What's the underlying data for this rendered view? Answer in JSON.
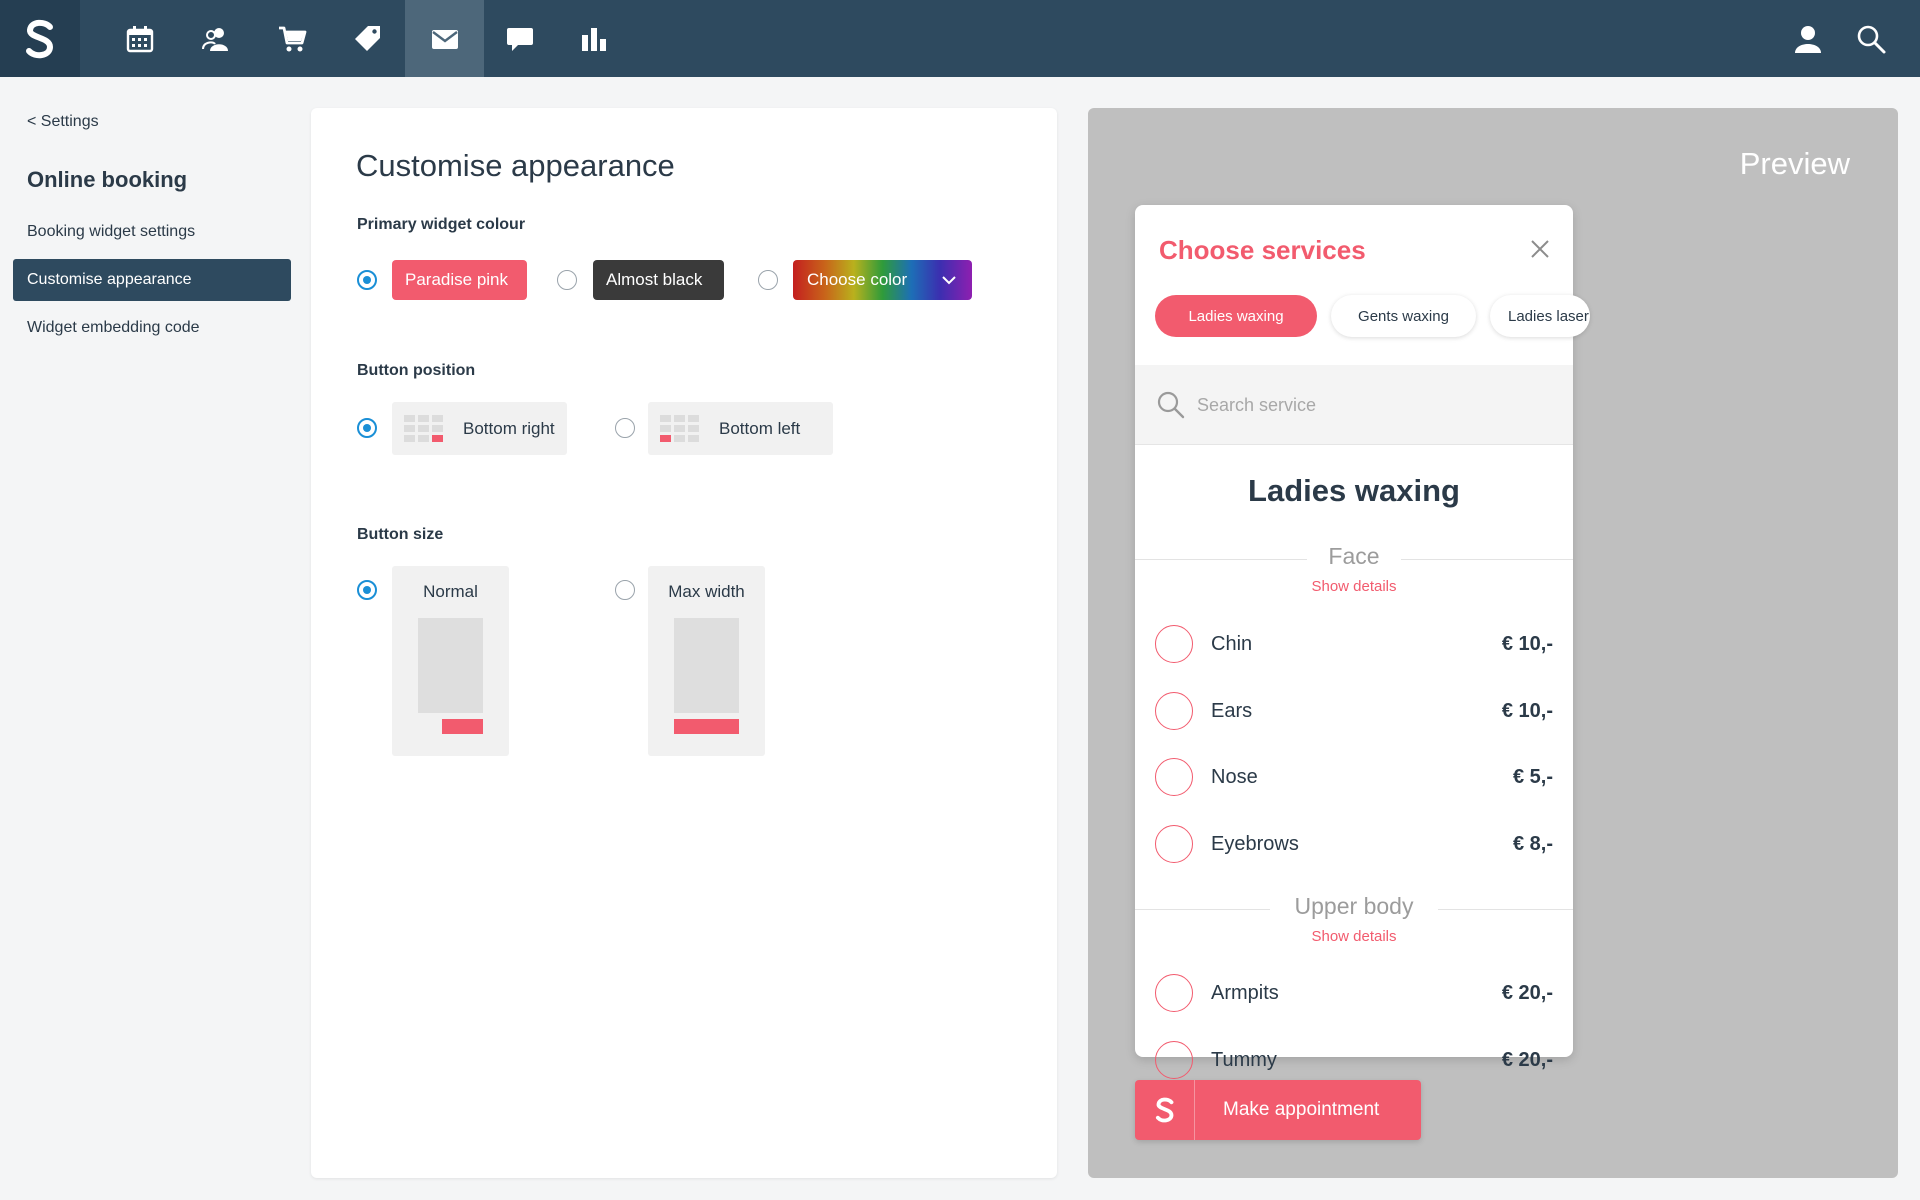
{
  "nav": {
    "brand_icon": "shore-logo-icon",
    "items": [
      {
        "icon": "calendar-icon"
      },
      {
        "icon": "customers-icon"
      },
      {
        "icon": "cart-icon"
      },
      {
        "icon": "tag-icon"
      },
      {
        "icon": "envelope-icon",
        "active": true
      },
      {
        "icon": "chat-icon"
      },
      {
        "icon": "bar-chart-icon"
      }
    ],
    "right_icons": [
      "user-icon",
      "search-icon"
    ],
    "bg_color": "#2e4a5f"
  },
  "sidebar": {
    "back_label": "<  Settings",
    "title": "Online booking",
    "items": [
      {
        "label": "Booking widget settings"
      },
      {
        "label": "Customise appearance",
        "active": true
      },
      {
        "label": "Widget embedding code"
      }
    ]
  },
  "main": {
    "title": "Customise appearance",
    "primary_colour": {
      "label": "Primary widget colour",
      "options": [
        {
          "label": "Paradise pink",
          "color": "#f25b6e",
          "selected": true
        },
        {
          "label": "Almost black",
          "color": "#3a3a3a",
          "selected": false
        },
        {
          "label": "Choose color",
          "selected": false
        }
      ]
    },
    "button_position": {
      "label": "Button position",
      "options": [
        {
          "label": "Bottom right",
          "selected": true
        },
        {
          "label": "Bottom left",
          "selected": false
        }
      ]
    },
    "button_size": {
      "label": "Button size",
      "options": [
        {
          "label": "Normal",
          "selected": true
        },
        {
          "label": "Max width",
          "selected": false
        }
      ]
    }
  },
  "preview": {
    "title": "Preview",
    "widget": {
      "title": "Choose services",
      "tabs": [
        {
          "label": "Ladies waxing",
          "active": true
        },
        {
          "label": "Gents waxing",
          "active": false
        },
        {
          "label": "Ladies laser",
          "active": false
        }
      ],
      "search_placeholder": "Search service",
      "category_title": "Ladies waxing",
      "show_details_label": "Show details",
      "sections": [
        {
          "name": "Face",
          "services": [
            {
              "name": "Chin",
              "price": "€ 10,-"
            },
            {
              "name": "Ears",
              "price": "€ 10,-"
            },
            {
              "name": "Nose",
              "price": "€ 5,-"
            },
            {
              "name": "Eyebrows",
              "price": "€ 8,-"
            }
          ]
        },
        {
          "name": "Upper body",
          "services": [
            {
              "name": "Armpits",
              "price": "€ 20,-"
            },
            {
              "name": "Tummy",
              "price": "€ 20,-"
            }
          ]
        }
      ]
    },
    "make_appointment_label": "Make appointment",
    "accent_color": "#f25b6e"
  }
}
